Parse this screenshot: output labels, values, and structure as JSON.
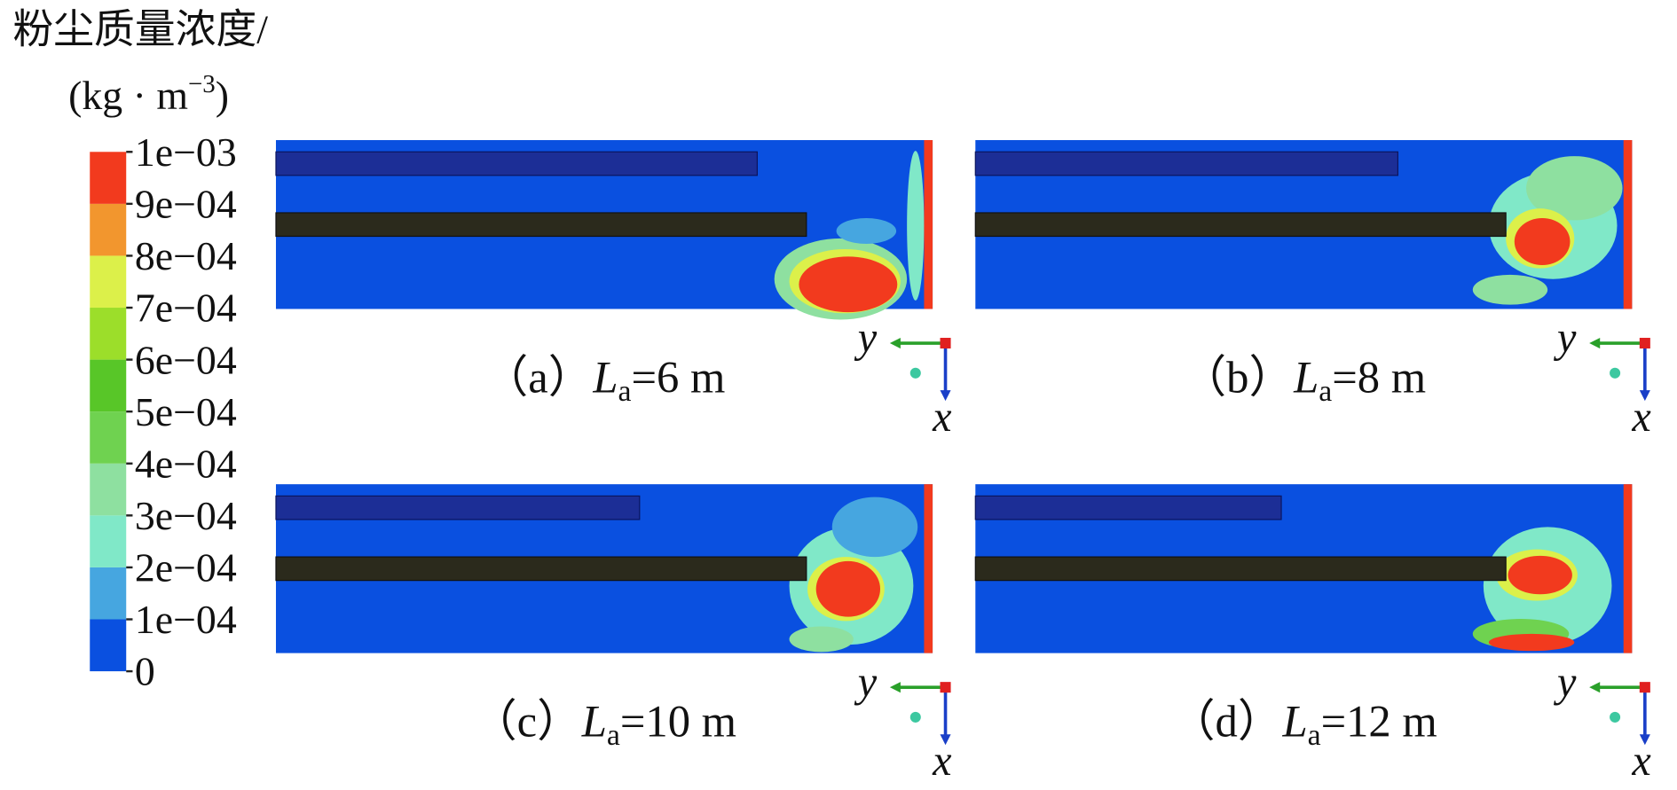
{
  "colorbar": {
    "title": "粉尘质量浓度/",
    "unit": "(kg · m",
    "unit_exponent": "−3",
    "unit_close": ")",
    "ticks": [
      {
        "value": 0.001,
        "label": "1e−03"
      },
      {
        "value": 0.0009,
        "label": "9e−04"
      },
      {
        "value": 0.0008,
        "label": "8e−04"
      },
      {
        "value": 0.0007,
        "label": "7e−04"
      },
      {
        "value": 0.0006,
        "label": "6e−04"
      },
      {
        "value": 0.0005,
        "label": "5e−04"
      },
      {
        "value": 0.0004,
        "label": "4e−04"
      },
      {
        "value": 0.0003,
        "label": "3e−04"
      },
      {
        "value": 0.0002,
        "label": "2e−04"
      },
      {
        "value": 0.0001,
        "label": "1e−04"
      },
      0
    ],
    "band_colors": [
      "#0a50e0",
      "#46a6e0",
      "#80e8c8",
      "#8ee0a0",
      "#6fd250",
      "#58c628",
      "#9cde2a",
      "#dcf04a",
      "#f2962e",
      "#f23a1e"
    ]
  },
  "panels": [
    {
      "label": "（a）",
      "symbol": "L",
      "subscript": "a",
      "value_text": "=6 m",
      "axis_y": "y",
      "axis_x": "x"
    },
    {
      "label": "（b）",
      "symbol": "L",
      "subscript": "a",
      "value_text": "=8 m",
      "axis_y": "y",
      "axis_x": "x"
    },
    {
      "label": "（c）",
      "symbol": "L",
      "subscript": "a",
      "value_text": "=10 m",
      "axis_y": "y",
      "axis_x": "x"
    },
    {
      "label": "（d）",
      "symbol": "L",
      "subscript": "a",
      "value_text": "=12 m",
      "axis_y": "y",
      "axis_x": "x"
    }
  ]
}
